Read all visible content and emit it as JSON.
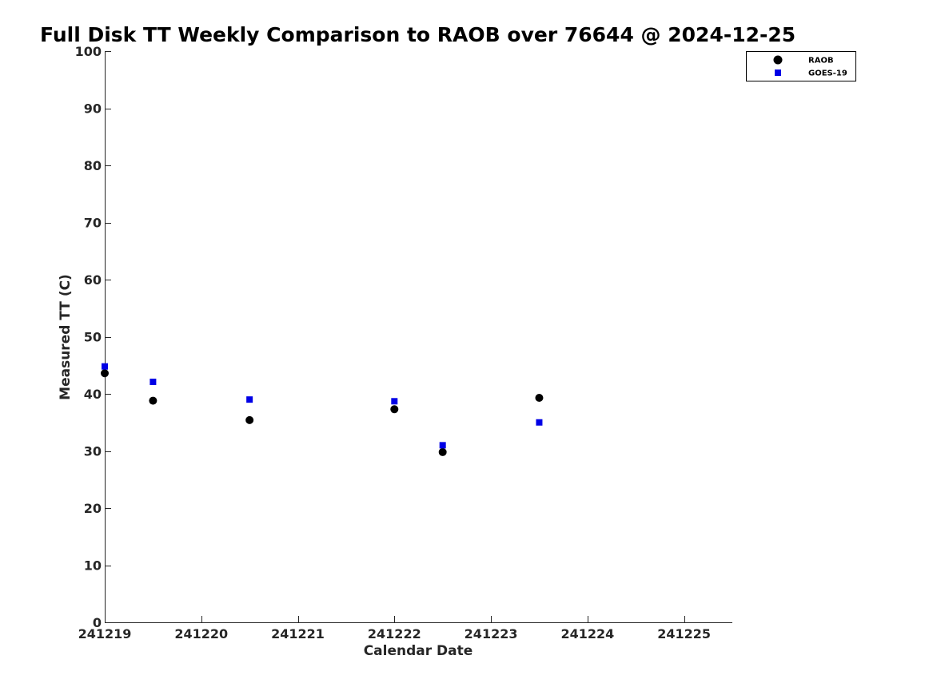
{
  "chart_data": {
    "type": "scatter",
    "title": "Full Disk TT Weekly Comparison to RAOB over 76644 @ 2024-12-25",
    "xlabel": "Calendar Date",
    "ylabel": "Measured TT (C)",
    "xlim": [
      0,
      6.5
    ],
    "ylim": [
      0,
      100
    ],
    "x_ticks": [
      {
        "value": 0,
        "label": "241219"
      },
      {
        "value": 1,
        "label": "241220"
      },
      {
        "value": 2,
        "label": "241221"
      },
      {
        "value": 3,
        "label": "241222"
      },
      {
        "value": 4,
        "label": "241223"
      },
      {
        "value": 5,
        "label": "241224"
      },
      {
        "value": 6,
        "label": "241225"
      }
    ],
    "y_ticks": [
      0,
      10,
      20,
      30,
      40,
      50,
      60,
      70,
      80,
      90,
      100
    ],
    "legend_position": "top-right",
    "series": [
      {
        "name": "RAOB",
        "marker": "circle",
        "color": "#000000",
        "points": [
          {
            "x": 0,
            "y": 43.6
          },
          {
            "x": 0.5,
            "y": 38.8
          },
          {
            "x": 1.5,
            "y": 35.4
          },
          {
            "x": 3,
            "y": 37.3
          },
          {
            "x": 3.5,
            "y": 29.8
          },
          {
            "x": 4.5,
            "y": 39.3
          }
        ]
      },
      {
        "name": "GOES-19",
        "marker": "square",
        "color": "#0000e6",
        "points": [
          {
            "x": 0,
            "y": 44.8
          },
          {
            "x": 0.5,
            "y": 42.1
          },
          {
            "x": 1.5,
            "y": 39.0
          },
          {
            "x": 3,
            "y": 38.7
          },
          {
            "x": 3.5,
            "y": 31.0
          },
          {
            "x": 4.5,
            "y": 35.0
          }
        ]
      }
    ]
  }
}
